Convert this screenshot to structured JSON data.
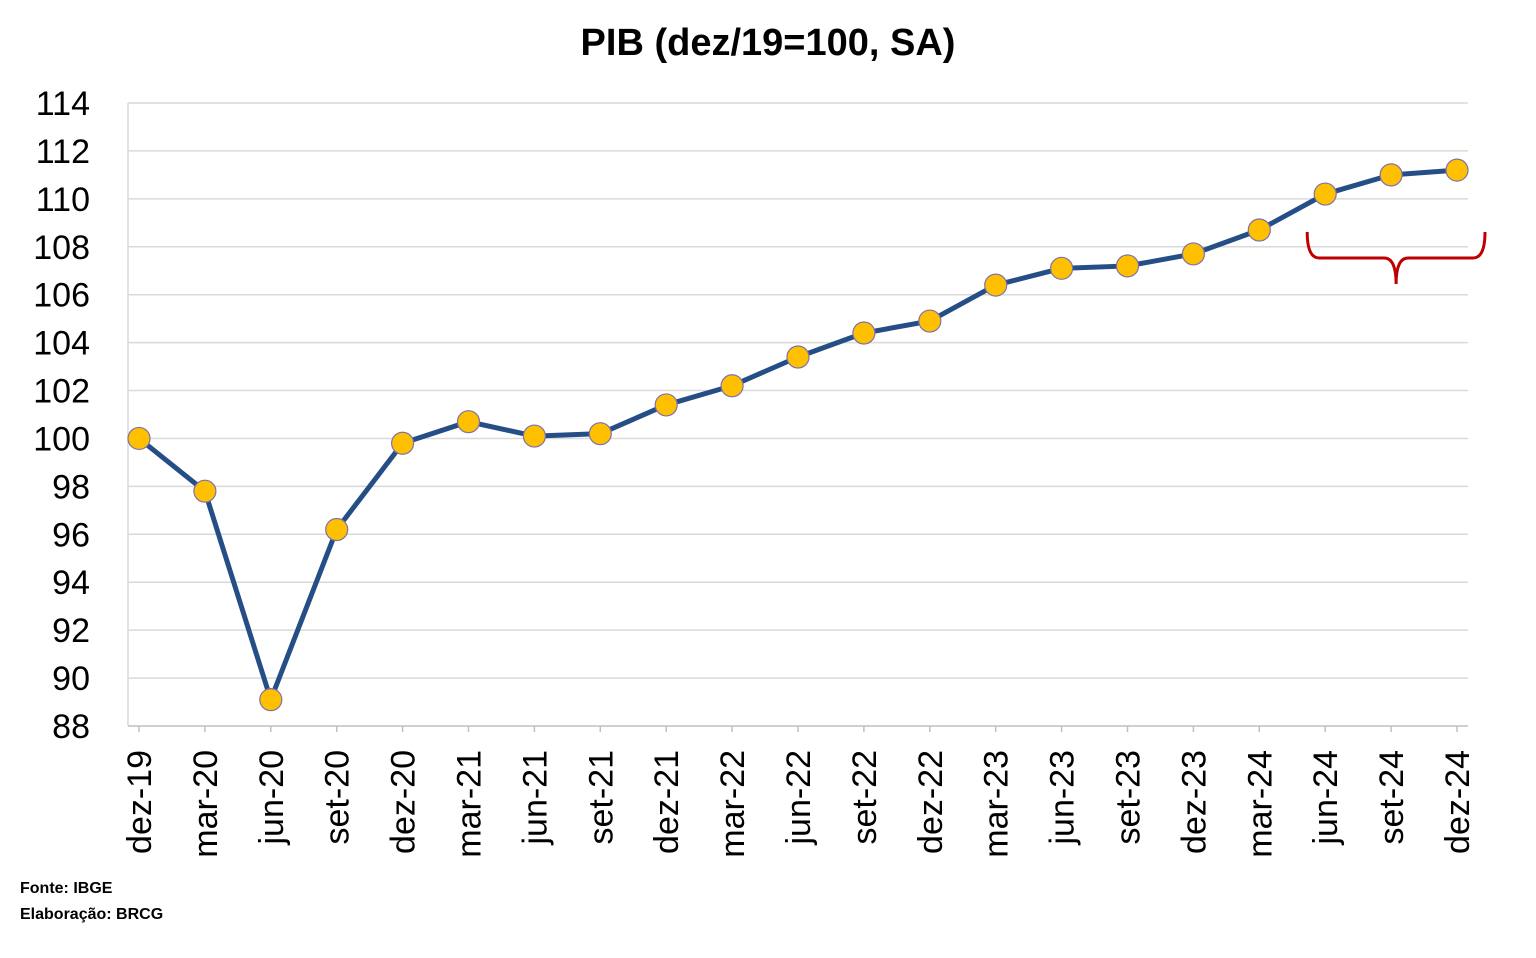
{
  "notes": {
    "source": "Fonte: IBGE",
    "author": "Elaboração: BRCG"
  },
  "chart_data": {
    "type": "line",
    "title": "PIB (dez/19=100, SA)",
    "xlabel": "",
    "ylabel": "",
    "ylim": [
      88,
      114
    ],
    "yticks": [
      88,
      90,
      92,
      94,
      96,
      98,
      100,
      102,
      104,
      106,
      108,
      110,
      112,
      114
    ],
    "grid": true,
    "legend": "none",
    "categories": [
      "dez-19",
      "mar-20",
      "jun-20",
      "set-20",
      "dez-20",
      "mar-21",
      "jun-21",
      "set-21",
      "dez-21",
      "mar-22",
      "jun-22",
      "set-22",
      "dez-22",
      "mar-23",
      "jun-23",
      "set-23",
      "dez-23",
      "mar-24",
      "jun-24",
      "set-24",
      "dez-24"
    ],
    "series": [
      {
        "values": [
          100.0,
          97.8,
          89.1,
          96.2,
          99.8,
          100.7,
          100.1,
          100.2,
          101.4,
          102.2,
          103.4,
          104.4,
          104.9,
          106.4,
          107.1,
          107.2,
          107.7,
          108.7,
          110.2,
          111.0,
          111.2
        ],
        "line_color": "#264E86",
        "marker_color": "#FFC000"
      }
    ],
    "annotation": {
      "type": "brace",
      "from": "jun-24",
      "to": "dez-24",
      "color": "#C00000"
    }
  }
}
